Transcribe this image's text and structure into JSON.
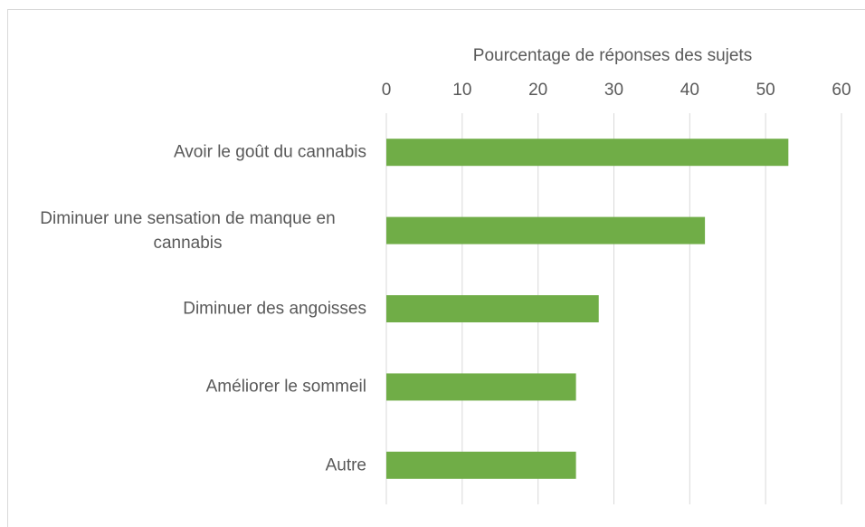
{
  "chart_data": {
    "type": "barh",
    "xlabel": "Pourcentage de réponses des sujets",
    "categories": [
      "Avoir le goût du cannabis",
      "Diminuer une sensation de manque en cannabis",
      "Diminuer des angoisses",
      "Améliorer le sommeil",
      "Autre"
    ],
    "values": [
      53,
      42,
      28,
      25,
      25
    ],
    "color": "#70ad47",
    "xlim": [
      0,
      60
    ],
    "xticks": [
      0,
      10,
      20,
      30,
      40,
      50,
      60
    ],
    "grid": true
  }
}
